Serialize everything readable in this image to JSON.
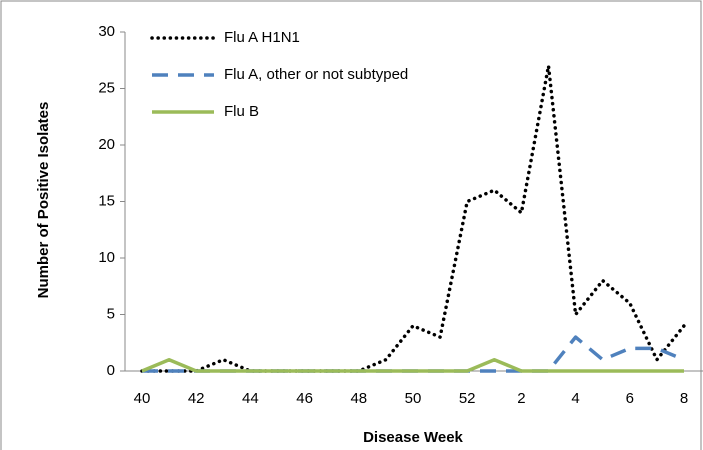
{
  "chart_data": {
    "type": "line",
    "x_label": "Disease Week",
    "y_label": "Number of Positive Isolates",
    "categories": [
      "40",
      null,
      "42",
      null,
      "44",
      null,
      "46",
      null,
      "48",
      null,
      "50",
      null,
      "52",
      null,
      "2",
      null,
      "4",
      null,
      "6",
      null,
      "8"
    ],
    "series": [
      {
        "name": "Flu A H1N1",
        "color": "#000000",
        "style": "dotted",
        "values": [
          0,
          0,
          0,
          1,
          0,
          0,
          0,
          0,
          0,
          1,
          4,
          3,
          15,
          16,
          14,
          27,
          5,
          8,
          6,
          1,
          4
        ]
      },
      {
        "name": "Flu A, other or not subtyped",
        "color": "#4f81bd",
        "style": "dashed",
        "values": [
          0,
          0,
          0,
          0,
          0,
          0,
          0,
          0,
          0,
          0,
          0,
          0,
          0,
          0,
          0,
          0,
          3,
          1,
          2,
          2,
          1
        ]
      },
      {
        "name": "Flu B",
        "color": "#9bbb59",
        "style": "solid",
        "values": [
          0,
          1,
          0,
          0,
          0,
          0,
          0,
          0,
          0,
          0,
          0,
          0,
          0,
          1,
          0,
          0,
          0,
          0,
          0,
          0,
          0
        ]
      }
    ],
    "ylim": [
      0,
      30
    ],
    "yticks": [
      0,
      5,
      10,
      15,
      20,
      25,
      30
    ],
    "legend": "top-left"
  }
}
